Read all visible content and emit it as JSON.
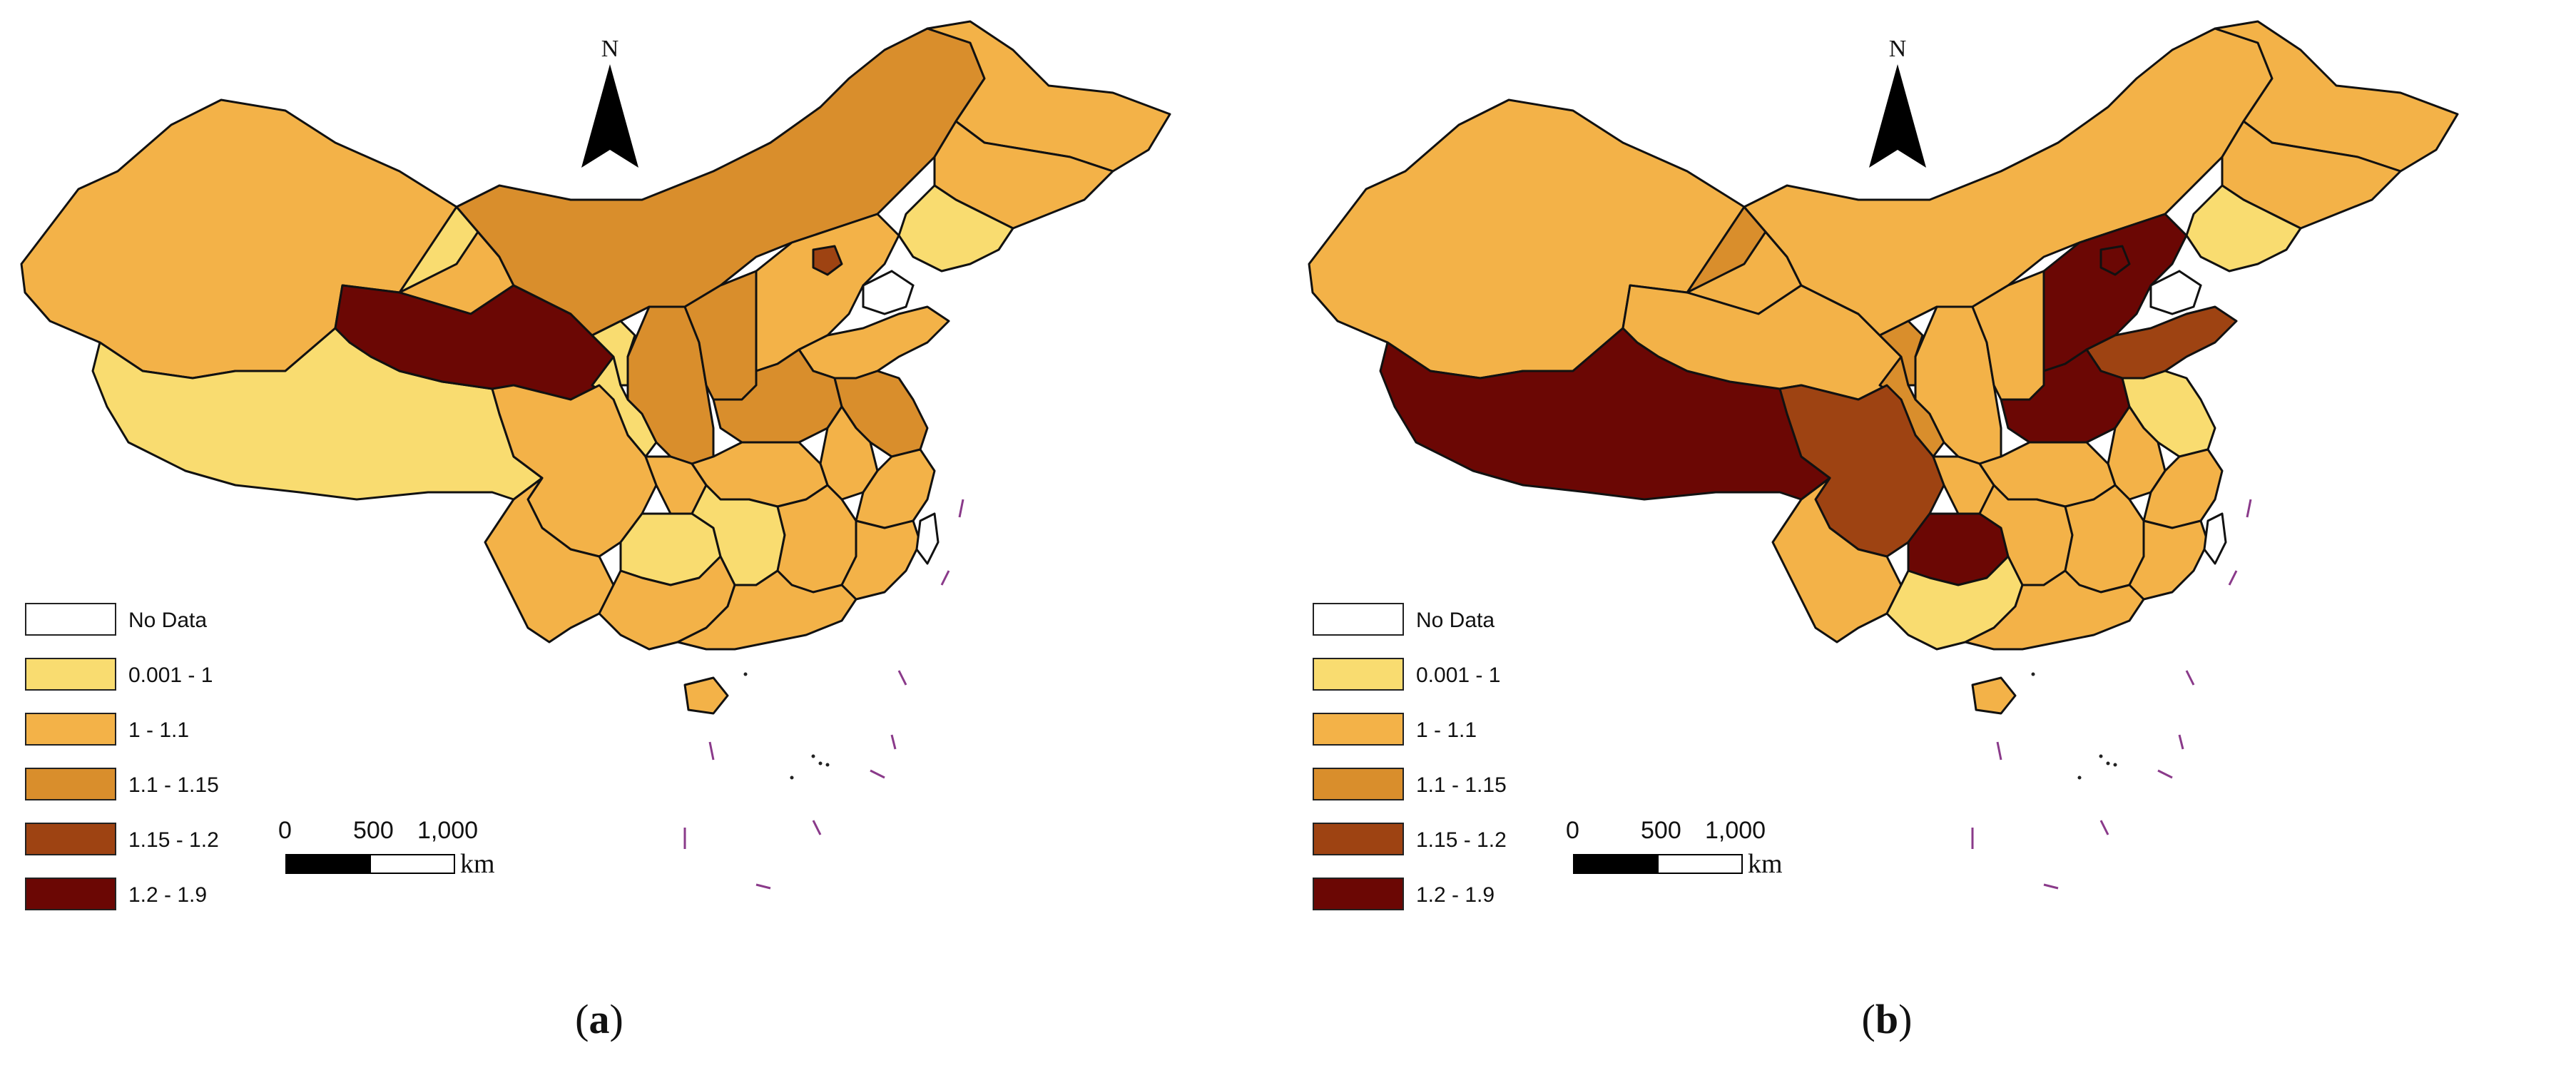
{
  "legend": {
    "classes": [
      {
        "label": "No Data",
        "color": "#ffffff"
      },
      {
        "label": "0.001 - 1",
        "color": "#f9dc70"
      },
      {
        "label": "1 - 1.1",
        "color": "#f3b248"
      },
      {
        "label": "1.1 - 1.15",
        "color": "#d98e2c"
      },
      {
        "label": "1.15 - 1.2",
        "color": "#9e4312"
      },
      {
        "label": "1.2 - 1.9",
        "color": "#6b0704"
      }
    ]
  },
  "north_label": "N",
  "scale": {
    "ticks": [
      "0",
      "500",
      "1,000"
    ],
    "unit": "km"
  },
  "panels": [
    {
      "id": "a",
      "caption_letter": "a",
      "caption_open": "(",
      "caption_close": ")",
      "regions": {
        "xinjiang": "#f3b248",
        "tibet": "#f9dc70",
        "qinghai": "#6b0704",
        "gansu": "#f9dc70",
        "inner_mongolia": "#d98e2c",
        "heilongjiang": "#f3b248",
        "jilin": "#f3b248",
        "liaoning": "#f9dc70",
        "ningxia": "#f9dc70",
        "shaanxi": "#d98e2c",
        "shanxi": "#d98e2c",
        "hebei": "#f3b248",
        "beijing": "#9e4312",
        "shandong": "#f3b248",
        "henan": "#d98e2c",
        "jiangsu": "#d98e2c",
        "anhui": "#f3b248",
        "sichuan": "#f3b248",
        "chongqing": "#f3b248",
        "hubei": "#f3b248",
        "yunnan": "#f3b248",
        "guizhou": "#f9dc70",
        "hunan": "#f9dc70",
        "jiangxi": "#f3b248",
        "zhejiang": "#f3b248",
        "fujian": "#f3b248",
        "guangxi": "#f3b248",
        "guangdong": "#f3b248",
        "hainan": "#f3b248",
        "taiwan": "#ffffff"
      }
    },
    {
      "id": "b",
      "caption_letter": "b",
      "caption_open": "(",
      "caption_close": ")",
      "regions": {
        "xinjiang": "#f3b248",
        "tibet": "#6b0704",
        "qinghai": "#f3b248",
        "gansu": "#d98e2c",
        "inner_mongolia": "#f3b248",
        "heilongjiang": "#f3b248",
        "jilin": "#f3b248",
        "liaoning": "#f9dc70",
        "ningxia": "#d98e2c",
        "shaanxi": "#f3b248",
        "shanxi": "#f3b248",
        "hebei": "#6b0704",
        "beijing": "#6b0704",
        "shandong": "#9e4312",
        "henan": "#6b0704",
        "jiangsu": "#f9dc70",
        "anhui": "#f3b248",
        "sichuan": "#9e4312",
        "chongqing": "#f3b248",
        "hubei": "#f3b248",
        "yunnan": "#f3b248",
        "guizhou": "#6b0704",
        "hunan": "#f3b248",
        "jiangxi": "#f3b248",
        "zhejiang": "#f3b248",
        "fujian": "#f3b248",
        "guangxi": "#f9dc70",
        "guangdong": "#f3b248",
        "hainan": "#f3b248",
        "taiwan": "#ffffff"
      }
    }
  ]
}
